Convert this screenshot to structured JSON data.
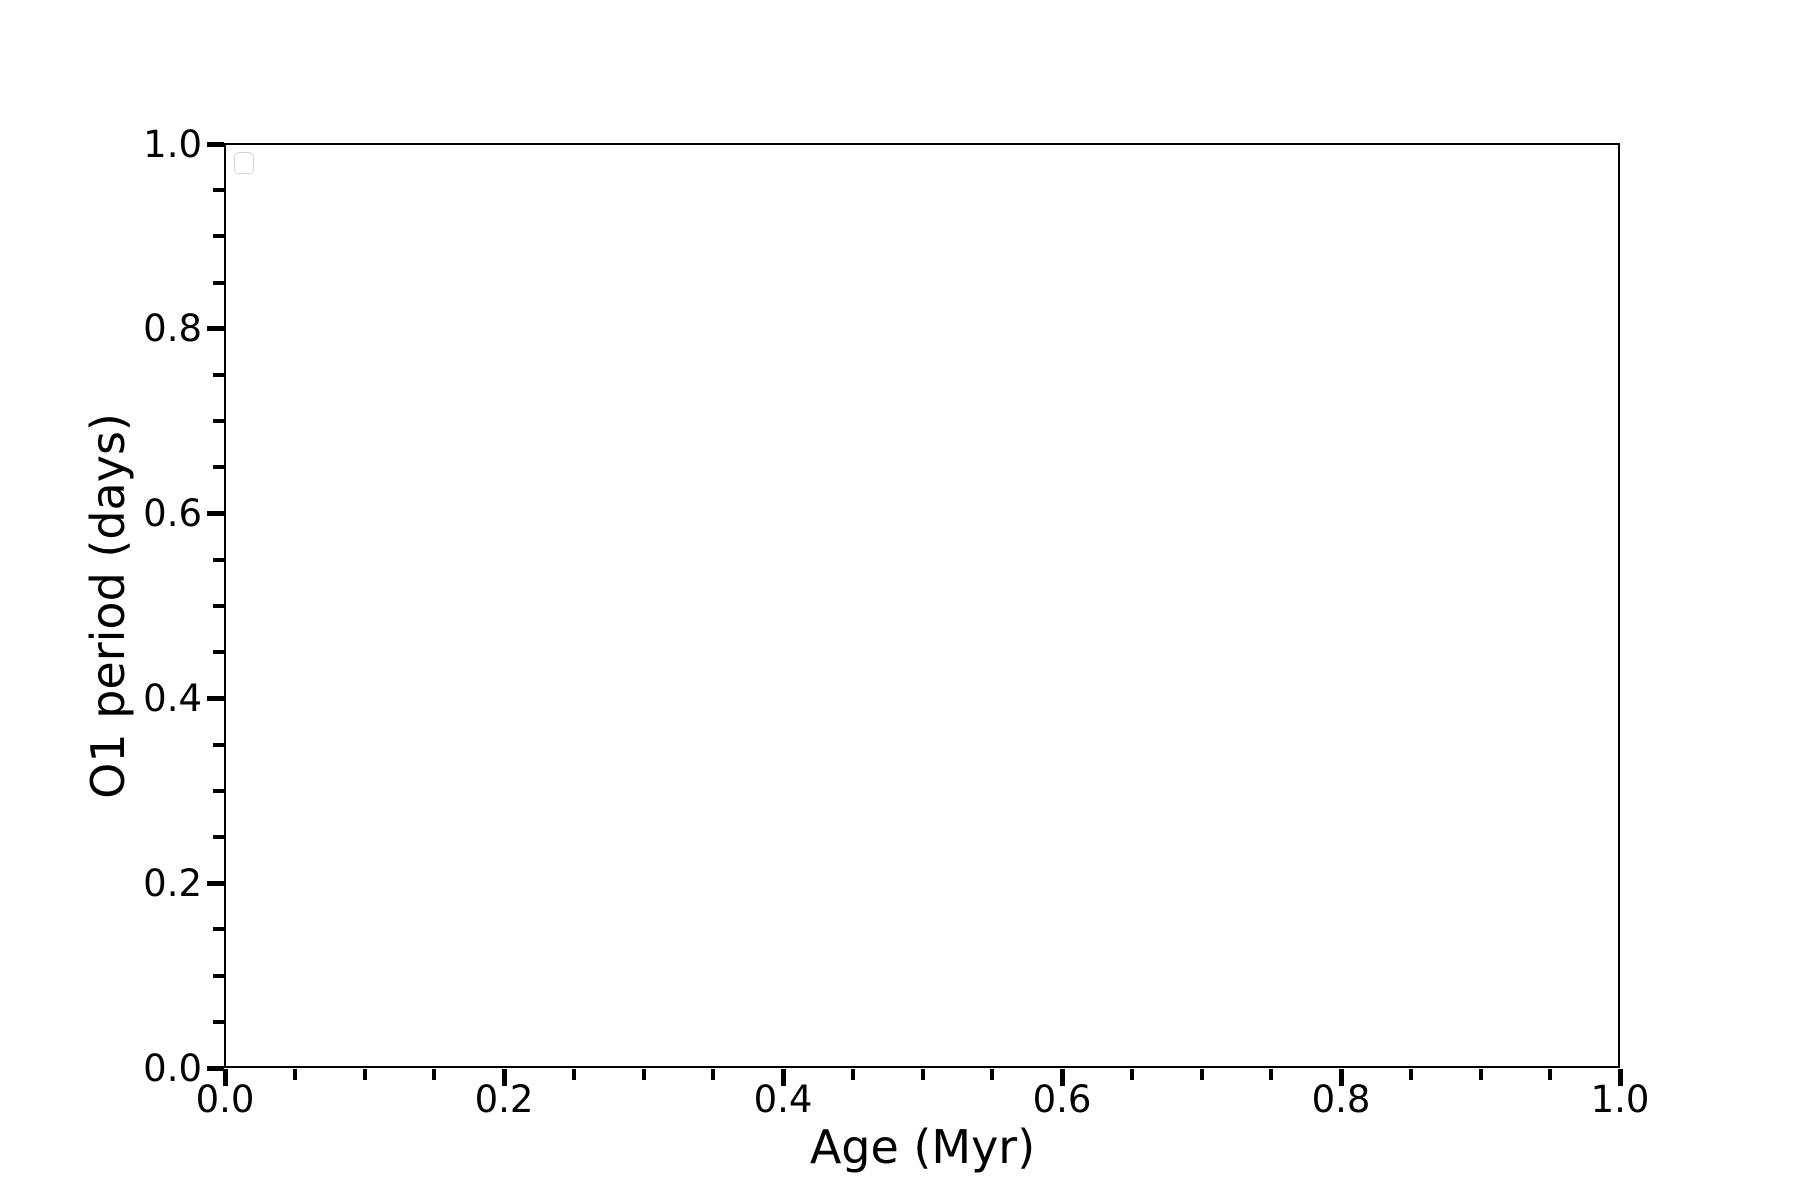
{
  "figure": {
    "background_color": "#ffffff",
    "axis_color": "#000000",
    "text_color": "#000000",
    "legend_border_color": "#d4d4d4"
  },
  "chart_data": {
    "type": "scatter",
    "title": "",
    "xlabel": "Age (Myr)",
    "ylabel": "O1 period (days)",
    "xlim": [
      0.0,
      1.0
    ],
    "ylim": [
      0.0,
      1.0
    ],
    "x_major_ticks": [
      0.0,
      0.2,
      0.4,
      0.6,
      0.8,
      1.0
    ],
    "y_major_ticks": [
      0.0,
      0.2,
      0.4,
      0.6,
      0.8,
      1.0
    ],
    "x_tick_labels": [
      "0.0",
      "0.2",
      "0.4",
      "0.6",
      "0.8",
      "1.0"
    ],
    "y_tick_labels": [
      "0.0",
      "0.2",
      "0.4",
      "0.6",
      "0.8",
      "1.0"
    ],
    "minor_tick_step": 0.05,
    "tick_direction": "out",
    "grid": false,
    "axes_box": true,
    "series": [],
    "legend": {
      "visible": true,
      "entries": [],
      "location": "upper left"
    }
  }
}
